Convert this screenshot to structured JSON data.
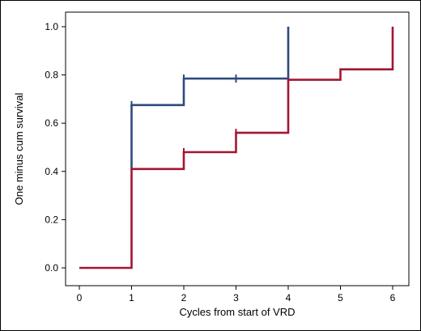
{
  "chart_data": {
    "type": "line",
    "step": true,
    "xlabel": "Cycles from start of VRD",
    "ylabel": "One minus cum survival",
    "xlim": [
      0,
      6
    ],
    "ylim": [
      0,
      1
    ],
    "x_ticks": [
      "0",
      "1",
      "2",
      "3",
      "4",
      "5",
      "6"
    ],
    "y_ticks": [
      "0.0",
      "0.2",
      "0.4",
      "0.6",
      "0.8",
      "1.0"
    ],
    "grid": false,
    "series": [
      {
        "color": "#2e4a7e",
        "points": [
          [
            1,
            0.41
          ],
          [
            1,
            0.675
          ],
          [
            2,
            0.675
          ],
          [
            2,
            0.785
          ],
          [
            3,
            0.785
          ],
          [
            4,
            0.785
          ],
          [
            4,
            1.0
          ]
        ],
        "censor_x": [
          1,
          2,
          3
        ]
      },
      {
        "color": "#a31631",
        "points": [
          [
            0,
            0
          ],
          [
            1,
            0
          ],
          [
            1,
            0.41
          ],
          [
            2,
            0.41
          ],
          [
            2,
            0.48
          ],
          [
            3,
            0.48
          ],
          [
            3,
            0.56
          ],
          [
            4,
            0.56
          ],
          [
            4,
            0.78
          ],
          [
            5,
            0.78
          ],
          [
            5,
            0.823
          ],
          [
            6,
            0.823
          ],
          [
            6,
            1.0
          ]
        ],
        "censor_x": [
          2,
          3
        ]
      }
    ]
  }
}
